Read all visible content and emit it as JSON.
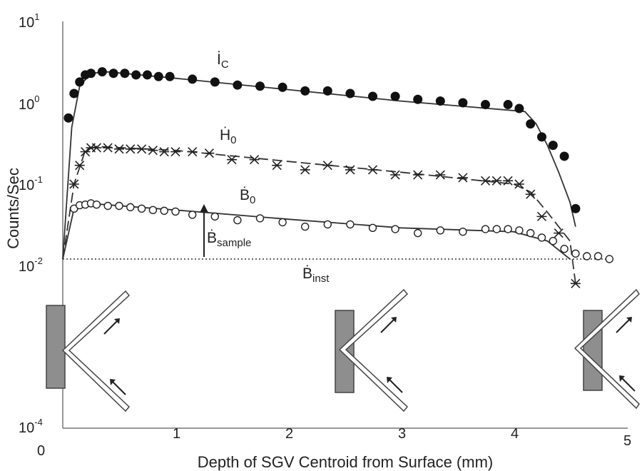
{
  "chart_data": {
    "type": "scatter",
    "xlabel": "Depth of SGV Centroid from Surface (mm)",
    "ylabel": "Counts/Sec",
    "xlim": [
      0,
      5
    ],
    "ylim_log10": [
      -4,
      1
    ],
    "y_scale": "log",
    "x_ticks": [
      "0",
      "1",
      "2",
      "3",
      "4",
      "5"
    ],
    "y_ticks": [
      {
        "base": "10",
        "exp": "1"
      },
      {
        "base": "10",
        "exp": "0"
      },
      {
        "base": "10",
        "exp": "-1"
      },
      {
        "base": "10",
        "exp": "-2"
      },
      {
        "base": "10",
        "exp": "-4"
      }
    ],
    "series": [
      {
        "name": "İc",
        "marker": "filled-circle",
        "x": [
          0.05,
          0.1,
          0.15,
          0.2,
          0.25,
          0.35,
          0.45,
          0.55,
          0.65,
          0.75,
          0.85,
          0.95,
          1.15,
          1.35,
          1.55,
          1.75,
          1.95,
          2.15,
          2.35,
          2.55,
          2.75,
          2.95,
          3.15,
          3.35,
          3.55,
          3.75,
          3.95,
          4.05,
          4.15,
          4.25,
          4.35,
          4.45,
          4.55
        ],
        "y": [
          0.65,
          1.3,
          1.8,
          2.2,
          2.3,
          2.4,
          2.3,
          2.3,
          2.2,
          2.2,
          2.1,
          2.1,
          1.95,
          1.8,
          1.65,
          1.6,
          1.55,
          1.4,
          1.4,
          1.3,
          1.2,
          1.2,
          1.1,
          1.05,
          1.0,
          0.95,
          0.95,
          0.85,
          0.55,
          0.38,
          0.3,
          0.22,
          0.05
        ]
      },
      {
        "name": "Ḣ0",
        "marker": "star",
        "x": [
          0.1,
          0.15,
          0.2,
          0.25,
          0.3,
          0.4,
          0.5,
          0.6,
          0.7,
          0.8,
          0.9,
          1.0,
          1.15,
          1.3,
          1.5,
          1.7,
          1.9,
          2.15,
          2.35,
          2.55,
          2.75,
          2.95,
          3.15,
          3.35,
          3.55,
          3.75,
          3.85,
          3.95,
          4.05,
          4.15,
          4.25,
          4.4,
          4.55
        ],
        "y": [
          0.1,
          0.17,
          0.25,
          0.28,
          0.28,
          0.28,
          0.27,
          0.27,
          0.27,
          0.26,
          0.25,
          0.25,
          0.25,
          0.24,
          0.2,
          0.2,
          0.17,
          0.15,
          0.17,
          0.15,
          0.15,
          0.13,
          0.13,
          0.13,
          0.12,
          0.11,
          0.11,
          0.11,
          0.1,
          0.075,
          0.04,
          0.025,
          0.006
        ]
      },
      {
        "name": "Ḃ0",
        "marker": "open-circle",
        "x": [
          0.1,
          0.15,
          0.2,
          0.25,
          0.3,
          0.4,
          0.5,
          0.6,
          0.7,
          0.8,
          0.9,
          1.0,
          1.15,
          1.35,
          1.55,
          1.75,
          1.95,
          2.15,
          2.35,
          2.55,
          2.75,
          2.95,
          3.15,
          3.35,
          3.55,
          3.75,
          3.85,
          3.95,
          4.05,
          4.15,
          4.25,
          4.35,
          4.45,
          4.55,
          4.65,
          4.75,
          4.85
        ],
        "y": [
          0.05,
          0.055,
          0.056,
          0.058,
          0.056,
          0.054,
          0.054,
          0.052,
          0.05,
          0.048,
          0.047,
          0.046,
          0.042,
          0.04,
          0.036,
          0.038,
          0.034,
          0.03,
          0.032,
          0.032,
          0.029,
          0.028,
          0.025,
          0.027,
          0.026,
          0.028,
          0.028,
          0.028,
          0.027,
          0.025,
          0.022,
          0.02,
          0.016,
          0.014,
          0.013,
          0.013,
          0.012
        ]
      }
    ],
    "fit_lines": [
      {
        "for": "İc",
        "style": "solid",
        "x": [
          0.0,
          0.08,
          0.15,
          0.25,
          0.4,
          1.0,
          2.0,
          3.0,
          4.1,
          4.2,
          4.3,
          4.4,
          4.5,
          4.55
        ],
        "y": [
          0.012,
          0.5,
          1.6,
          2.3,
          2.4,
          2.0,
          1.45,
          1.05,
          0.78,
          0.55,
          0.3,
          0.14,
          0.06,
          0.03
        ]
      },
      {
        "for": "Ḣ0",
        "style": "dashed",
        "x": [
          0.0,
          0.1,
          0.2,
          0.3,
          1.0,
          2.0,
          3.0,
          4.0,
          4.15,
          4.3,
          4.5,
          4.55
        ],
        "y": [
          0.012,
          0.1,
          0.26,
          0.29,
          0.26,
          0.19,
          0.14,
          0.1,
          0.08,
          0.045,
          0.02,
          0.006
        ]
      },
      {
        "for": "Ḃ0",
        "style": "solid",
        "x": [
          0.0,
          0.1,
          0.2,
          0.3,
          1.0,
          2.0,
          3.0,
          4.0,
          4.3,
          4.5
        ],
        "y": [
          0.012,
          0.05,
          0.058,
          0.057,
          0.048,
          0.037,
          0.029,
          0.026,
          0.02,
          0.012
        ]
      },
      {
        "for": "Ḃinst",
        "style": "dotted",
        "x": [
          0.0,
          4.85
        ],
        "y": [
          0.012,
          0.012
        ]
      }
    ],
    "annotations": [
      {
        "base": "İ",
        "sub": "C"
      },
      {
        "base": "Ḣ",
        "sub": "0"
      },
      {
        "base": "Ḃ",
        "sub": "0"
      },
      {
        "base": "Ḃ",
        "sub": "sample"
      },
      {
        "base": "Ḃ",
        "sub": "inst"
      }
    ],
    "grid": false,
    "legend": "none"
  }
}
